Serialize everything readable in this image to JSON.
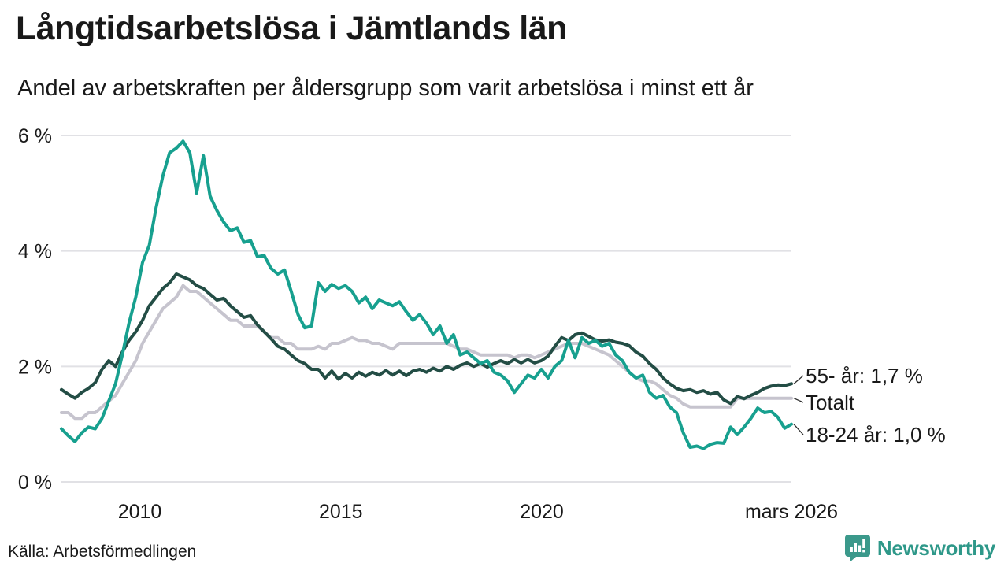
{
  "header": {
    "title": "Långtidsarbetslösa i Jämtlands län",
    "subtitle": "Andel av arbetskraften per åldersgrupp som varit arbetslösa i minst ett år"
  },
  "chart_data": {
    "type": "line",
    "title": "Långtidsarbetslösa i Jämtlands län",
    "subtitle": "Andel av arbetskraften per åldersgrupp som varit arbetslösa i minst ett år",
    "grid": "horizontal-only",
    "legend_position": "right-end-of-lines",
    "x_range": [
      2008.05,
      2026.21
    ],
    "ylim": [
      0,
      6
    ],
    "y_ticks": [
      {
        "value": 0,
        "label": "0 %"
      },
      {
        "value": 2,
        "label": "2 %"
      },
      {
        "value": 4,
        "label": "4 %"
      },
      {
        "value": 6,
        "label": "6 %"
      }
    ],
    "x_ticks": [
      {
        "value": 2010,
        "label": "2010"
      },
      {
        "value": 2015,
        "label": "2015"
      },
      {
        "value": 2020,
        "label": "2020"
      },
      {
        "value": 2026.21,
        "label": "mars 2026"
      }
    ],
    "series": [
      {
        "name": "55- år",
        "end_label": "55- år: 1,7 %",
        "end_value_text": "1,7 %",
        "color": "#234d45",
        "values": [
          1.6,
          1.52,
          1.45,
          1.55,
          1.62,
          1.72,
          1.95,
          2.1,
          2.0,
          2.25,
          2.45,
          2.6,
          2.8,
          3.05,
          3.2,
          3.35,
          3.45,
          3.6,
          3.55,
          3.5,
          3.4,
          3.35,
          3.25,
          3.15,
          3.18,
          3.05,
          2.95,
          2.85,
          2.88,
          2.72,
          2.6,
          2.48,
          2.35,
          2.3,
          2.2,
          2.1,
          2.05,
          1.95,
          1.95,
          1.8,
          1.92,
          1.78,
          1.88,
          1.8,
          1.9,
          1.83,
          1.9,
          1.85,
          1.93,
          1.85,
          1.92,
          1.84,
          1.92,
          1.95,
          1.9,
          1.97,
          1.92,
          2.0,
          1.95,
          2.02,
          2.06,
          2.0,
          2.05,
          1.99,
          2.05,
          2.1,
          2.05,
          2.12,
          2.06,
          2.12,
          2.06,
          2.1,
          2.18,
          2.35,
          2.5,
          2.45,
          2.55,
          2.58,
          2.52,
          2.46,
          2.44,
          2.46,
          2.42,
          2.4,
          2.36,
          2.25,
          2.18,
          2.05,
          1.95,
          1.8,
          1.7,
          1.62,
          1.58,
          1.6,
          1.55,
          1.58,
          1.52,
          1.55,
          1.42,
          1.36,
          1.48,
          1.44,
          1.5,
          1.55,
          1.62,
          1.66,
          1.68,
          1.67,
          1.7
        ]
      },
      {
        "name": "Totalt",
        "end_label": "Totalt",
        "end_value_text": "",
        "color": "#c6c4ce",
        "values": [
          1.2,
          1.2,
          1.1,
          1.1,
          1.2,
          1.2,
          1.3,
          1.4,
          1.5,
          1.7,
          1.9,
          2.1,
          2.4,
          2.6,
          2.8,
          3.0,
          3.1,
          3.2,
          3.4,
          3.3,
          3.3,
          3.2,
          3.1,
          3.0,
          2.9,
          2.8,
          2.8,
          2.7,
          2.7,
          2.7,
          2.6,
          2.5,
          2.5,
          2.4,
          2.4,
          2.3,
          2.3,
          2.3,
          2.35,
          2.3,
          2.4,
          2.4,
          2.45,
          2.5,
          2.45,
          2.45,
          2.4,
          2.4,
          2.35,
          2.3,
          2.4,
          2.4,
          2.4,
          2.4,
          2.4,
          2.4,
          2.4,
          2.4,
          2.35,
          2.3,
          2.3,
          2.25,
          2.2,
          2.2,
          2.2,
          2.2,
          2.2,
          2.15,
          2.2,
          2.2,
          2.15,
          2.2,
          2.25,
          2.3,
          2.35,
          2.4,
          2.4,
          2.4,
          2.35,
          2.3,
          2.25,
          2.2,
          2.1,
          2.0,
          1.9,
          1.8,
          1.75,
          1.75,
          1.7,
          1.6,
          1.5,
          1.45,
          1.35,
          1.3,
          1.3,
          1.3,
          1.3,
          1.3,
          1.3,
          1.3,
          1.45,
          1.45,
          1.45,
          1.45,
          1.45,
          1.45,
          1.45,
          1.45,
          1.45
        ]
      },
      {
        "name": "18-24 år",
        "end_label": "18-24 år: 1,0 %",
        "end_value_text": "1,0 %",
        "color": "#17a08f",
        "values": [
          0.92,
          0.8,
          0.7,
          0.85,
          0.95,
          0.92,
          1.1,
          1.4,
          1.7,
          2.2,
          2.75,
          3.2,
          3.8,
          4.1,
          4.75,
          5.3,
          5.7,
          5.78,
          5.9,
          5.7,
          5.0,
          5.65,
          4.95,
          4.7,
          4.5,
          4.35,
          4.4,
          4.15,
          4.18,
          3.9,
          3.92,
          3.7,
          3.6,
          3.67,
          3.3,
          2.9,
          2.67,
          2.7,
          3.45,
          3.3,
          3.42,
          3.35,
          3.4,
          3.3,
          3.1,
          3.2,
          3.0,
          3.15,
          3.1,
          3.05,
          3.12,
          2.95,
          2.8,
          2.9,
          2.75,
          2.55,
          2.7,
          2.4,
          2.55,
          2.2,
          2.25,
          2.15,
          2.05,
          2.1,
          1.9,
          1.85,
          1.75,
          1.55,
          1.7,
          1.85,
          1.8,
          1.95,
          1.8,
          2.0,
          2.1,
          2.45,
          2.15,
          2.5,
          2.4,
          2.45,
          2.35,
          2.4,
          2.2,
          2.1,
          1.9,
          1.8,
          1.85,
          1.55,
          1.45,
          1.5,
          1.3,
          1.2,
          0.85,
          0.6,
          0.62,
          0.58,
          0.65,
          0.68,
          0.67,
          0.95,
          0.82,
          0.95,
          1.1,
          1.28,
          1.2,
          1.22,
          1.12,
          0.93,
          1.0
        ]
      }
    ]
  },
  "colors": {
    "series_55": "#234d45",
    "series_total": "#c6c4ce",
    "series_18_24": "#17a08f",
    "gridline": "#e1e1e5",
    "text": "#191919",
    "brand_teal": "#2e9889",
    "connector": "#2b2b2b"
  },
  "footer": {
    "source": "Källa: Arbetsförmedlingen",
    "brand": "Newsworthy"
  }
}
